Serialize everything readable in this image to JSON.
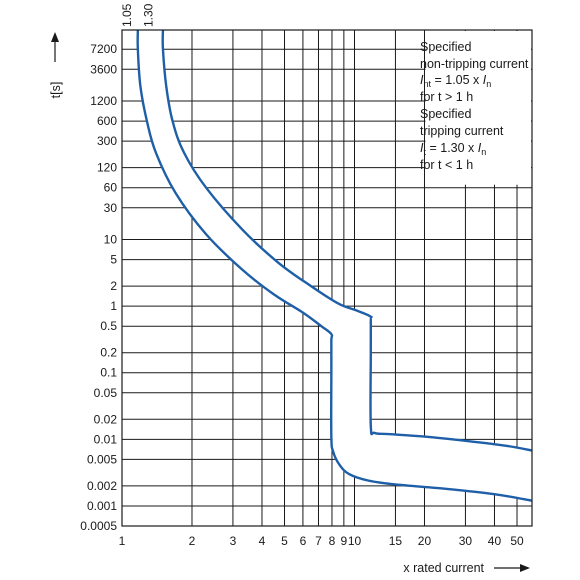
{
  "chart_data": {
    "type": "line",
    "x_scale": "log",
    "y_scale": "log",
    "xlim": [
      1,
      58
    ],
    "ylim": [
      0.0005,
      14000
    ],
    "grid": true,
    "xlabel": "x rated current",
    "ylabel": "t[s]",
    "x_ticks": [
      1,
      2,
      3,
      4,
      5,
      6,
      7,
      8,
      9,
      10,
      15,
      20,
      30,
      40,
      50
    ],
    "y_ticks": [
      0.0005,
      0.001,
      0.002,
      0.005,
      0.01,
      0.02,
      0.05,
      0.1,
      0.2,
      0.5,
      1,
      2,
      5,
      10,
      30,
      60,
      120,
      300,
      600,
      1200,
      3600,
      7200
    ],
    "x_tick_labels": [
      "1",
      "2",
      "3",
      "4",
      "5",
      "6",
      "7",
      "8",
      "9",
      "10",
      "15",
      "20",
      "30",
      "40",
      "50"
    ],
    "y_tick_labels": [
      "0.0005",
      "0.001",
      "0.002",
      "0.005",
      "0.01",
      "0.02",
      "0.05",
      "0.1",
      "0.2",
      "0.5",
      "1",
      "2",
      "5",
      "10",
      "30",
      "60",
      "120",
      "300",
      "600",
      "1200",
      "3600",
      "7200"
    ],
    "top_labels": [
      {
        "text": "1.05",
        "x": 1.05
      },
      {
        "text": "1.30",
        "x": 1.3
      }
    ],
    "series": [
      {
        "points": [
          [
            1.17,
            14000
          ],
          [
            1.17,
            7200
          ],
          [
            1.2,
            2000
          ],
          [
            1.28,
            600
          ],
          [
            1.4,
            200
          ],
          [
            1.7,
            50
          ],
          [
            2.3,
            12
          ],
          [
            3.3,
            3.5
          ],
          [
            4.5,
            1.5
          ],
          [
            6.0,
            0.8
          ],
          [
            7.2,
            0.5
          ],
          [
            7.95,
            0.38
          ],
          [
            7.95,
            0.3
          ],
          [
            7.95,
            0.1
          ],
          [
            7.95,
            0.011
          ],
          [
            8.1,
            0.0065
          ],
          [
            8.6,
            0.0042
          ],
          [
            9.5,
            0.003
          ],
          [
            11.5,
            0.0024
          ],
          [
            15,
            0.0021
          ],
          [
            25,
            0.0018
          ],
          [
            40,
            0.0015
          ],
          [
            58,
            0.0012
          ]
        ]
      },
      {
        "points": [
          [
            1.5,
            14000
          ],
          [
            1.5,
            7200
          ],
          [
            1.55,
            2000
          ],
          [
            1.65,
            600
          ],
          [
            1.85,
            200
          ],
          [
            2.3,
            60
          ],
          [
            3.3,
            14
          ],
          [
            4.7,
            4.5
          ],
          [
            6.5,
            2.0
          ],
          [
            8.5,
            1.1
          ],
          [
            10.3,
            0.85
          ],
          [
            11.7,
            0.7
          ],
          [
            11.75,
            0.6
          ],
          [
            11.75,
            0.2
          ],
          [
            11.75,
            0.016
          ],
          [
            12.2,
            0.0125
          ],
          [
            14,
            0.012
          ],
          [
            20,
            0.011
          ],
          [
            30,
            0.0095
          ],
          [
            45,
            0.008
          ],
          [
            58,
            0.0068
          ]
        ]
      }
    ],
    "annotation_lines": [
      "Specified",
      "non-tripping current",
      "I",
      "nt",
      " = 1.05 x ",
      "I",
      "n",
      "for t > 1 h",
      "Specified",
      "tripping current",
      "I",
      "t",
      " = 1.30 x ",
      "I",
      "n",
      "for t < 1 h"
    ],
    "colors": {
      "curve": "#1f5fa8",
      "grid": "#1a1a1a",
      "text": "#1a1a1a"
    }
  }
}
